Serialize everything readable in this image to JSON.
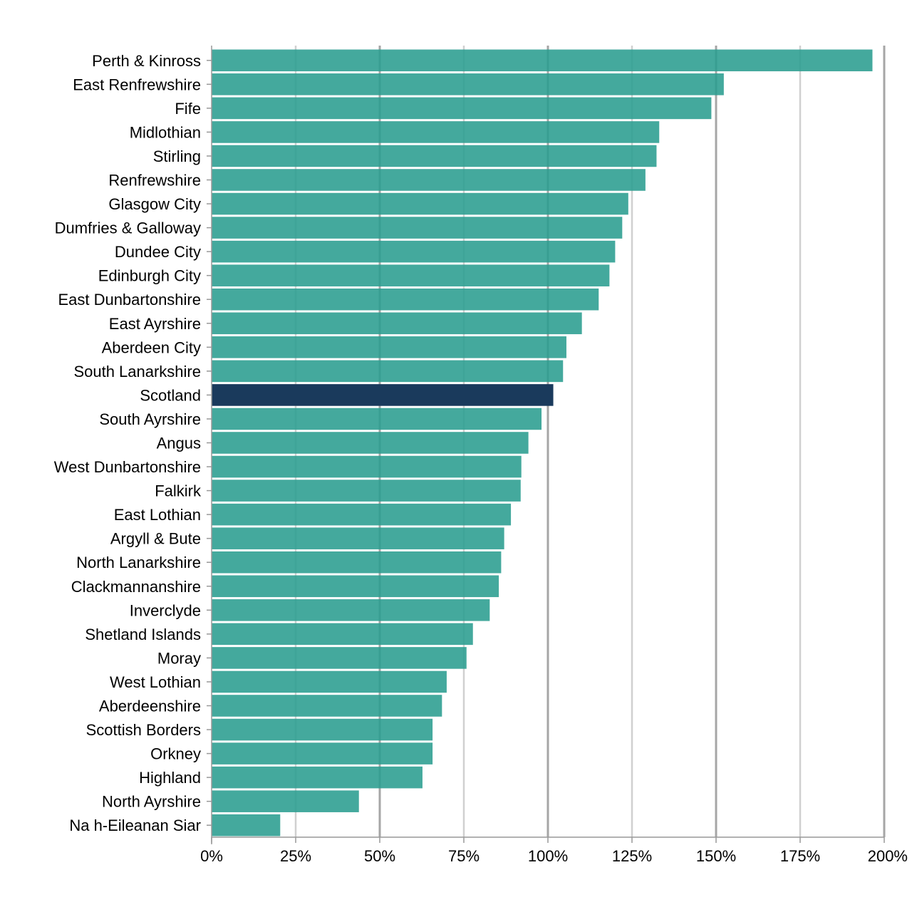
{
  "chart_data": {
    "type": "bar",
    "orientation": "horizontal",
    "title": "",
    "xlabel": "",
    "ylabel": "",
    "xlim": [
      0,
      200
    ],
    "x_ticks": [
      0,
      25,
      50,
      75,
      100,
      125,
      150,
      175,
      200
    ],
    "tick_labels": [
      "0%",
      "25%",
      "50%",
      "75%",
      "100%",
      "125%",
      "150%",
      "175%",
      "200%"
    ],
    "grid": true,
    "legend": "none",
    "colors": {
      "default": "#2a9d8f",
      "highlight": "#1a3a5c",
      "grid_minor": "#d0d0d0",
      "grid_major": "#a6a6a6",
      "axis": "#999999"
    },
    "highlight_category": "Scotland",
    "categories": [
      "Perth & Kinross",
      "East Renfrewshire",
      "Fife",
      "Midlothian",
      "Stirling",
      "Renfrewshire",
      "Glasgow City",
      "Dumfries & Galloway",
      "Dundee City",
      "Edinburgh City",
      "East Dunbartonshire",
      "East Ayrshire",
      "Aberdeen City",
      "South Lanarkshire",
      "Scotland",
      "South Ayrshire",
      "Angus",
      "West Dunbartonshire",
      "Falkirk",
      "East Lothian",
      "Argyll & Bute",
      "North Lanarkshire",
      "Clackmannanshire",
      "Inverclyde",
      "Shetland Islands",
      "Moray",
      "West Lothian",
      "Aberdeenshire",
      "Scottish Borders",
      "Orkney",
      "Highland",
      "North Ayrshire",
      "Na h-Eileanan Siar"
    ],
    "values": [
      196.5,
      152.3,
      148.6,
      133.1,
      132.3,
      129.0,
      123.9,
      122.1,
      120.0,
      118.3,
      115.1,
      110.1,
      105.5,
      104.5,
      101.6,
      98.1,
      94.2,
      92.1,
      91.9,
      89.0,
      87.0,
      86.1,
      85.4,
      82.7,
      77.7,
      75.8,
      69.9,
      68.5,
      65.7,
      65.7,
      62.7,
      43.8,
      20.4
    ]
  }
}
